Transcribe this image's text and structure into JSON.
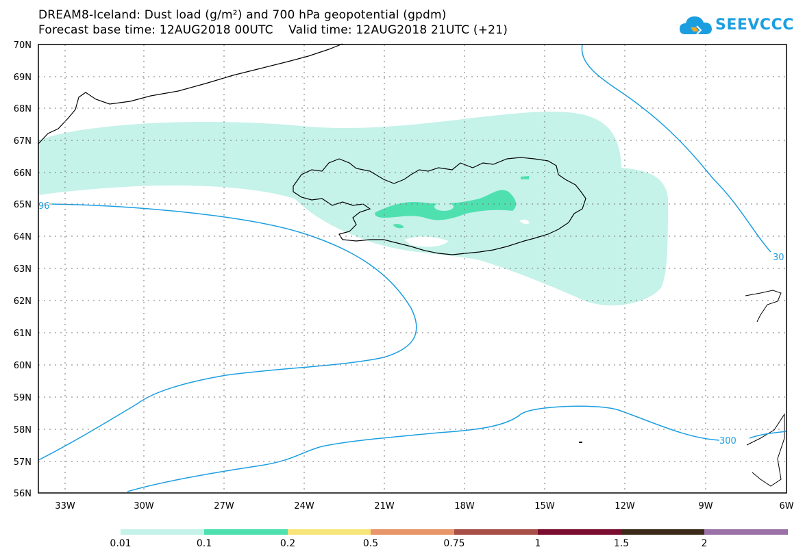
{
  "header": {
    "line1": "DREAM8-Iceland: Dust load (g/m²) and 700 hPa geopotential (gpdm)",
    "line2": "Forecast base time: 12AUG2018 00UTC    Valid time: 12AUG2018 21UTC (+21)"
  },
  "logo": {
    "text": "SEEVCCC",
    "color": "#1a9ee0"
  },
  "axes": {
    "lat_labels": [
      "70N",
      "69N",
      "68N",
      "67N",
      "66N",
      "65N",
      "64N",
      "63N",
      "62N",
      "61N",
      "60N",
      "59N",
      "58N",
      "57N",
      "56N"
    ],
    "lon_labels": [
      "33W",
      "30W",
      "27W",
      "24W",
      "21W",
      "18W",
      "15W",
      "12W",
      "9W",
      "6W"
    ]
  },
  "contours": {
    "color": "#1a9ee0",
    "labels": [
      "96",
      "30",
      "300"
    ]
  },
  "colorbar": {
    "levels": [
      "0.01",
      "0.1",
      "0.2",
      "0.5",
      "0.75",
      "1",
      "1.5",
      "2"
    ],
    "colors": [
      "#c5f2e9",
      "#4fe0b0",
      "#f7e57a",
      "#e8956a",
      "#a85048",
      "#7a0c30",
      "#3b2a1a",
      "#9a72a8"
    ]
  },
  "fills": {
    "light": "#c5f2e9",
    "mid": "#4fe0b0"
  }
}
